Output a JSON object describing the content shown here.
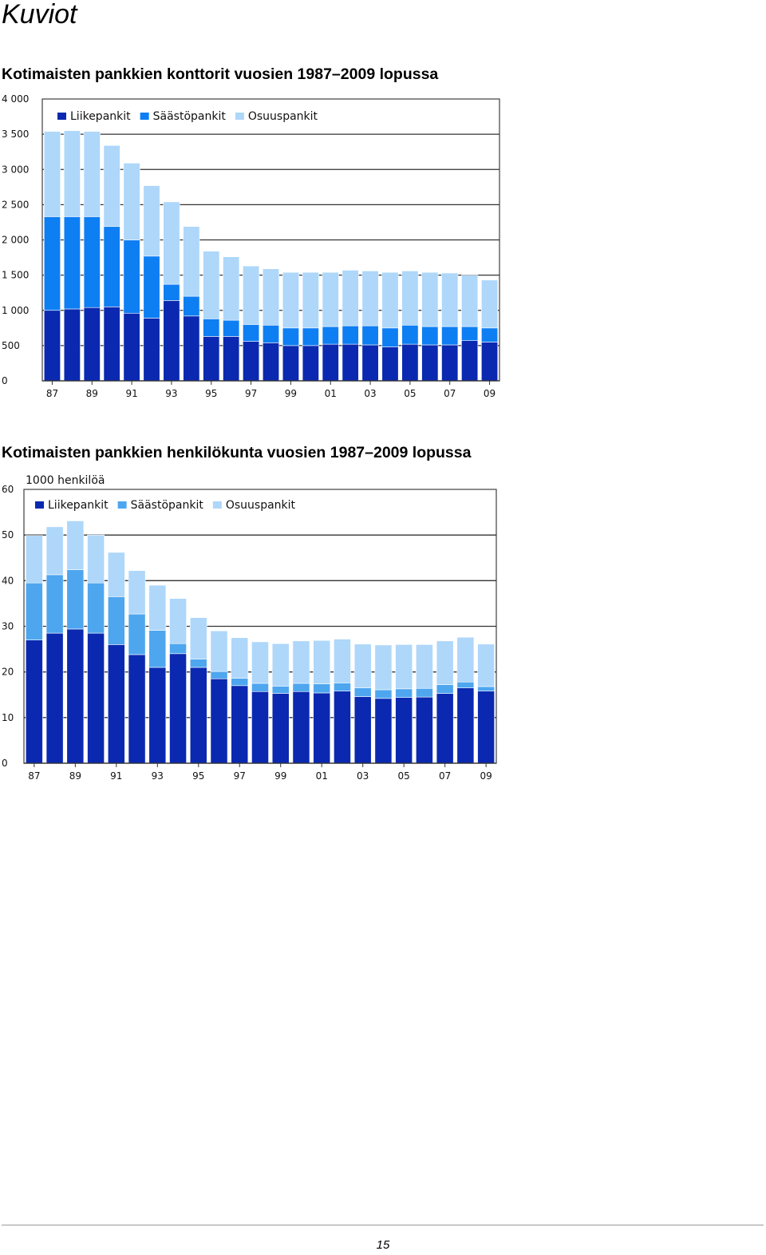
{
  "page": {
    "heading": "Kuviot",
    "page_number": "15"
  },
  "chart_data": [
    {
      "type": "bar",
      "stacked": true,
      "title": "Kotimaisten pankkien konttorit vuosien 1987–2009 lopussa",
      "unit_label": "",
      "categories": [
        "1987",
        "1988",
        "1989",
        "1990",
        "1991",
        "1992",
        "1993",
        "1994",
        "1995",
        "1996",
        "1997",
        "1998",
        "1999",
        "2000",
        "2001",
        "2002",
        "2003",
        "2004",
        "2005",
        "2006",
        "2007",
        "2008",
        "2009"
      ],
      "tick_labels": [
        "87",
        "",
        "89",
        "",
        "91",
        "",
        "93",
        "",
        "95",
        "",
        "97",
        "",
        "99",
        "",
        "01",
        "",
        "03",
        "",
        "05",
        "",
        "07",
        "",
        "09"
      ],
      "series": [
        {
          "name": "Liikepankit",
          "color": "#0a29b0",
          "values": [
            1000,
            1020,
            1040,
            1050,
            960,
            890,
            1140,
            920,
            630,
            630,
            560,
            540,
            500,
            500,
            520,
            520,
            510,
            480,
            520,
            510,
            510,
            570,
            550
          ]
        },
        {
          "name": "Säästöpankit",
          "color": "#0e7ef3",
          "values": [
            1330,
            1310,
            1290,
            1140,
            1040,
            880,
            230,
            280,
            250,
            230,
            240,
            250,
            250,
            250,
            250,
            260,
            270,
            270,
            270,
            260,
            260,
            200,
            200
          ]
        },
        {
          "name": "Osuuspankit",
          "color": "#aed7fa",
          "values": [
            1210,
            1220,
            1210,
            1150,
            1090,
            1000,
            1170,
            990,
            960,
            900,
            830,
            800,
            790,
            790,
            770,
            790,
            780,
            790,
            770,
            770,
            760,
            730,
            680
          ]
        }
      ],
      "y_ticks": [
        "0",
        "500",
        "1 000",
        "1 500",
        "2 000",
        "2 500",
        "3 000",
        "3 500",
        "4 000"
      ],
      "ylim": [
        0,
        4000
      ],
      "legend_position": "top-left inside",
      "grid": true
    },
    {
      "type": "bar",
      "stacked": true,
      "title": "Kotimaisten pankkien henkilökunta vuosien 1987–2009 lopussa",
      "unit_label": "1000 henkilöä",
      "categories": [
        "1987",
        "1988",
        "1989",
        "1990",
        "1991",
        "1992",
        "1993",
        "1994",
        "1995",
        "1996",
        "1997",
        "1998",
        "1999",
        "2000",
        "2001",
        "2002",
        "2003",
        "2004",
        "2005",
        "2006",
        "2007",
        "2008",
        "2009"
      ],
      "tick_labels": [
        "87",
        "",
        "89",
        "",
        "91",
        "",
        "93",
        "",
        "95",
        "",
        "97",
        "",
        "99",
        "",
        "01",
        "",
        "03",
        "",
        "05",
        "",
        "07",
        "",
        "09"
      ],
      "series": [
        {
          "name": "Liikepankit",
          "color": "#0a29b0",
          "values": [
            27,
            28.5,
            29.4,
            28.5,
            26,
            23.8,
            21,
            24,
            21,
            18.5,
            17,
            15.7,
            15.3,
            15.7,
            15.4,
            15.8,
            14.6,
            14.2,
            14.4,
            14.5,
            15.3,
            16.5,
            15.8
          ]
        },
        {
          "name": "Säästöpankit",
          "color": "#4ea6ef",
          "values": [
            12.5,
            12.8,
            13,
            11,
            10.5,
            8.9,
            8.1,
            2.2,
            1.8,
            1.6,
            1.6,
            1.8,
            1.6,
            1.8,
            2,
            1.8,
            1.9,
            1.9,
            1.9,
            1.9,
            1.9,
            1.3,
            1
          ]
        },
        {
          "name": "Osuuspankit",
          "color": "#aed7fa",
          "values": [
            10.4,
            10.5,
            10.7,
            10.5,
            9.7,
            9.5,
            9.9,
            9.9,
            9.1,
            8.9,
            8.9,
            9.1,
            9.3,
            9.3,
            9.5,
            9.6,
            9.6,
            9.8,
            9.7,
            9.6,
            9.6,
            9.8,
            9.3
          ]
        }
      ],
      "y_ticks": [
        "0",
        "10",
        "20",
        "30",
        "40",
        "50",
        "60"
      ],
      "ylim": [
        0,
        60
      ],
      "legend_position": "top-left inside",
      "grid": true
    }
  ]
}
